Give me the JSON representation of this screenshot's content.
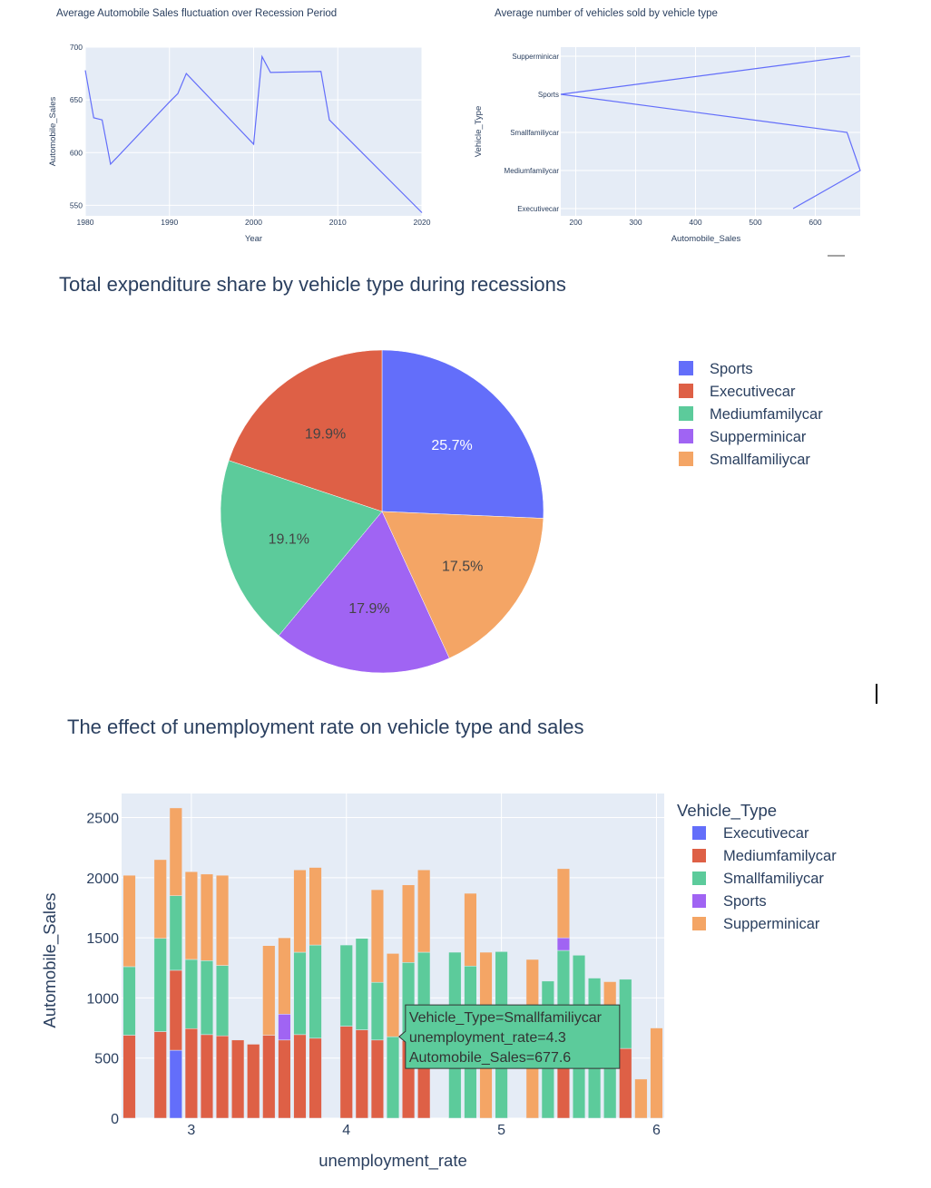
{
  "chart_data": [
    {
      "type": "line",
      "title": "Average Automobile Sales fluctuation over Recession Period",
      "xlabel": "Year",
      "ylabel": "Automobile_Sales",
      "xlim": [
        1980,
        2020
      ],
      "ylim": [
        540,
        700
      ],
      "xticks": [
        1980,
        1990,
        2000,
        2010,
        2020
      ],
      "yticks": [
        550,
        600,
        650,
        700
      ],
      "grid": true,
      "color": "#636efa",
      "x": [
        1980,
        1981,
        1982,
        1983,
        1990,
        1991,
        1992,
        2000,
        2001,
        2002,
        2008,
        2009,
        2020
      ],
      "y": [
        678,
        633,
        631,
        589,
        648,
        656,
        675,
        608,
        691,
        676,
        677,
        631,
        543
      ]
    },
    {
      "type": "line",
      "title": "Average number of vehicles sold by vehicle type",
      "xlabel": "Automobile_Sales",
      "ylabel": "Vehicle_Type",
      "xlim": [
        175,
        675
      ],
      "xticks": [
        200,
        300,
        400,
        500,
        600
      ],
      "categories": [
        "Executivecar",
        "Mediumfamilycar",
        "Smallfamiliycar",
        "Sports",
        "Supperminicar"
      ],
      "grid": true,
      "color": "#636efa",
      "points": [
        {
          "category": "Supperminicar",
          "value": 658
        },
        {
          "category": "Sports",
          "value": 175
        },
        {
          "category": "Smallfamiliycar",
          "value": 653
        },
        {
          "category": "Mediumfamilycar",
          "value": 675
        },
        {
          "category": "Executivecar",
          "value": 563
        }
      ]
    },
    {
      "type": "pie",
      "title": "Total expenditure share by vehicle type during recessions",
      "legend_placement": "right",
      "slices": [
        {
          "label": "Sports",
          "value": 25.7,
          "text": "25.7%",
          "color": "#636efa"
        },
        {
          "label": "Smallfamiliycar",
          "value": 17.5,
          "text": "17.5%",
          "color": "#f4a565"
        },
        {
          "label": "Supperminicar",
          "value": 17.9,
          "text": "17.9%",
          "color": "#a064f3"
        },
        {
          "label": "Mediumfamilycar",
          "value": 19.1,
          "text": "19.1%",
          "color": "#5ccb9b"
        },
        {
          "label": "Executivecar",
          "value": 19.9,
          "text": "19.9%",
          "color": "#de6046"
        }
      ],
      "legend": [
        {
          "label": "Sports",
          "color": "#636efa"
        },
        {
          "label": "Executivecar",
          "color": "#de6046"
        },
        {
          "label": "Mediumfamilycar",
          "color": "#5ccb9b"
        },
        {
          "label": "Supperminicar",
          "color": "#a064f3"
        },
        {
          "label": "Smallfamiliycar",
          "color": "#f4a565"
        }
      ]
    },
    {
      "type": "bar",
      "stacked": true,
      "title": "The effect of unemployment rate on vehicle type and sales",
      "xlabel": "unemployment_rate",
      "ylabel": "Automobile_Sales",
      "xlim": [
        2.55,
        6.05
      ],
      "ylim": [
        0,
        2700
      ],
      "xticks": [
        3,
        4,
        5,
        6
      ],
      "yticks": [
        0,
        500,
        1000,
        1500,
        2000,
        2500
      ],
      "bar_width": 0.08,
      "legend_title": "Vehicle_Type",
      "legend_placement": "right",
      "series": [
        {
          "name": "Executivecar",
          "color": "#636efa"
        },
        {
          "name": "Mediumfamilycar",
          "color": "#de6046"
        },
        {
          "name": "Smallfamiliycar",
          "color": "#5ccb9b"
        },
        {
          "name": "Sports",
          "color": "#a064f3"
        },
        {
          "name": "Supperminicar",
          "color": "#f4a565"
        }
      ],
      "bars": [
        {
          "x": 2.6,
          "values": {
            "Mediumfamilycar": 690,
            "Smallfamiliycar": 570,
            "Supperminicar": 760
          }
        },
        {
          "x": 2.8,
          "values": {
            "Mediumfamilycar": 720,
            "Smallfamiliycar": 775,
            "Supperminicar": 655
          }
        },
        {
          "x": 2.9,
          "values": {
            "Executivecar": 565,
            "Mediumfamilycar": 665,
            "Smallfamiliycar": 620,
            "Supperminicar": 730
          }
        },
        {
          "x": 3.0,
          "values": {
            "Mediumfamilycar": 745,
            "Smallfamiliycar": 575,
            "Supperminicar": 730
          }
        },
        {
          "x": 3.1,
          "values": {
            "Mediumfamilycar": 695,
            "Smallfamiliycar": 615,
            "Supperminicar": 720
          }
        },
        {
          "x": 3.2,
          "values": {
            "Mediumfamilycar": 685,
            "Smallfamiliycar": 585,
            "Supperminicar": 750
          }
        },
        {
          "x": 3.3,
          "values": {
            "Mediumfamilycar": 650
          }
        },
        {
          "x": 3.4,
          "values": {
            "Mediumfamilycar": 615
          }
        },
        {
          "x": 3.5,
          "values": {
            "Mediumfamilycar": 690,
            "Supperminicar": 745
          }
        },
        {
          "x": 3.6,
          "values": {
            "Mediumfamilycar": 650,
            "Sports": 215,
            "Supperminicar": 635
          }
        },
        {
          "x": 3.7,
          "values": {
            "Mediumfamilycar": 695,
            "Smallfamiliycar": 685,
            "Supperminicar": 685
          }
        },
        {
          "x": 3.8,
          "values": {
            "Mediumfamilycar": 665,
            "Smallfamiliycar": 775,
            "Supperminicar": 645
          }
        },
        {
          "x": 4.0,
          "values": {
            "Mediumfamilycar": 765,
            "Smallfamiliycar": 675
          }
        },
        {
          "x": 4.1,
          "values": {
            "Mediumfamilycar": 735,
            "Smallfamiliycar": 760
          }
        },
        {
          "x": 4.2,
          "values": {
            "Mediumfamilycar": 650,
            "Smallfamiliycar": 480,
            "Supperminicar": 770
          }
        },
        {
          "x": 4.3,
          "values": {
            "Smallfamiliycar": 677.6,
            "Supperminicar": 692
          }
        },
        {
          "x": 4.4,
          "values": {
            "Mediumfamilycar": 645,
            "Smallfamiliycar": 650,
            "Supperminicar": 645
          }
        },
        {
          "x": 4.5,
          "values": {
            "Mediumfamilycar": 665,
            "Smallfamiliycar": 715,
            "Supperminicar": 685
          }
        },
        {
          "x": 4.7,
          "values": {
            "Smallfamiliycar": 1380
          }
        },
        {
          "x": 4.8,
          "values": {
            "Smallfamiliycar": 1265,
            "Supperminicar": 605
          }
        },
        {
          "x": 4.9,
          "values": {
            "Supperminicar": 1380
          }
        },
        {
          "x": 5.0,
          "values": {
            "Smallfamiliycar": 1385
          }
        },
        {
          "x": 5.2,
          "values": {
            "Supperminicar": 1320
          }
        },
        {
          "x": 5.3,
          "values": {
            "Smallfamiliycar": 1140
          }
        },
        {
          "x": 5.4,
          "values": {
            "Mediumfamilycar": 620,
            "Smallfamiliycar": 775,
            "Sports": 105,
            "Supperminicar": 575
          }
        },
        {
          "x": 5.5,
          "values": {
            "Smallfamiliycar": 1355
          }
        },
        {
          "x": 5.6,
          "values": {
            "Smallfamiliycar": 1165
          }
        },
        {
          "x": 5.7,
          "values": {
            "Smallfamiliycar": 590,
            "Supperminicar": 545
          }
        },
        {
          "x": 5.8,
          "values": {
            "Mediumfamilycar": 580,
            "Smallfamiliycar": 575
          }
        },
        {
          "x": 5.9,
          "values": {
            "Supperminicar": 325
          }
        },
        {
          "x": 6.0,
          "values": {
            "Supperminicar": 750
          }
        }
      ],
      "hover": {
        "lines": [
          "Vehicle_Type=Smallfamiliycar",
          "unemployment_rate=4.3",
          "Automobile_Sales=677.6"
        ],
        "x": 4.3,
        "y": 677.6,
        "color": "#5ccb9b"
      }
    }
  ]
}
